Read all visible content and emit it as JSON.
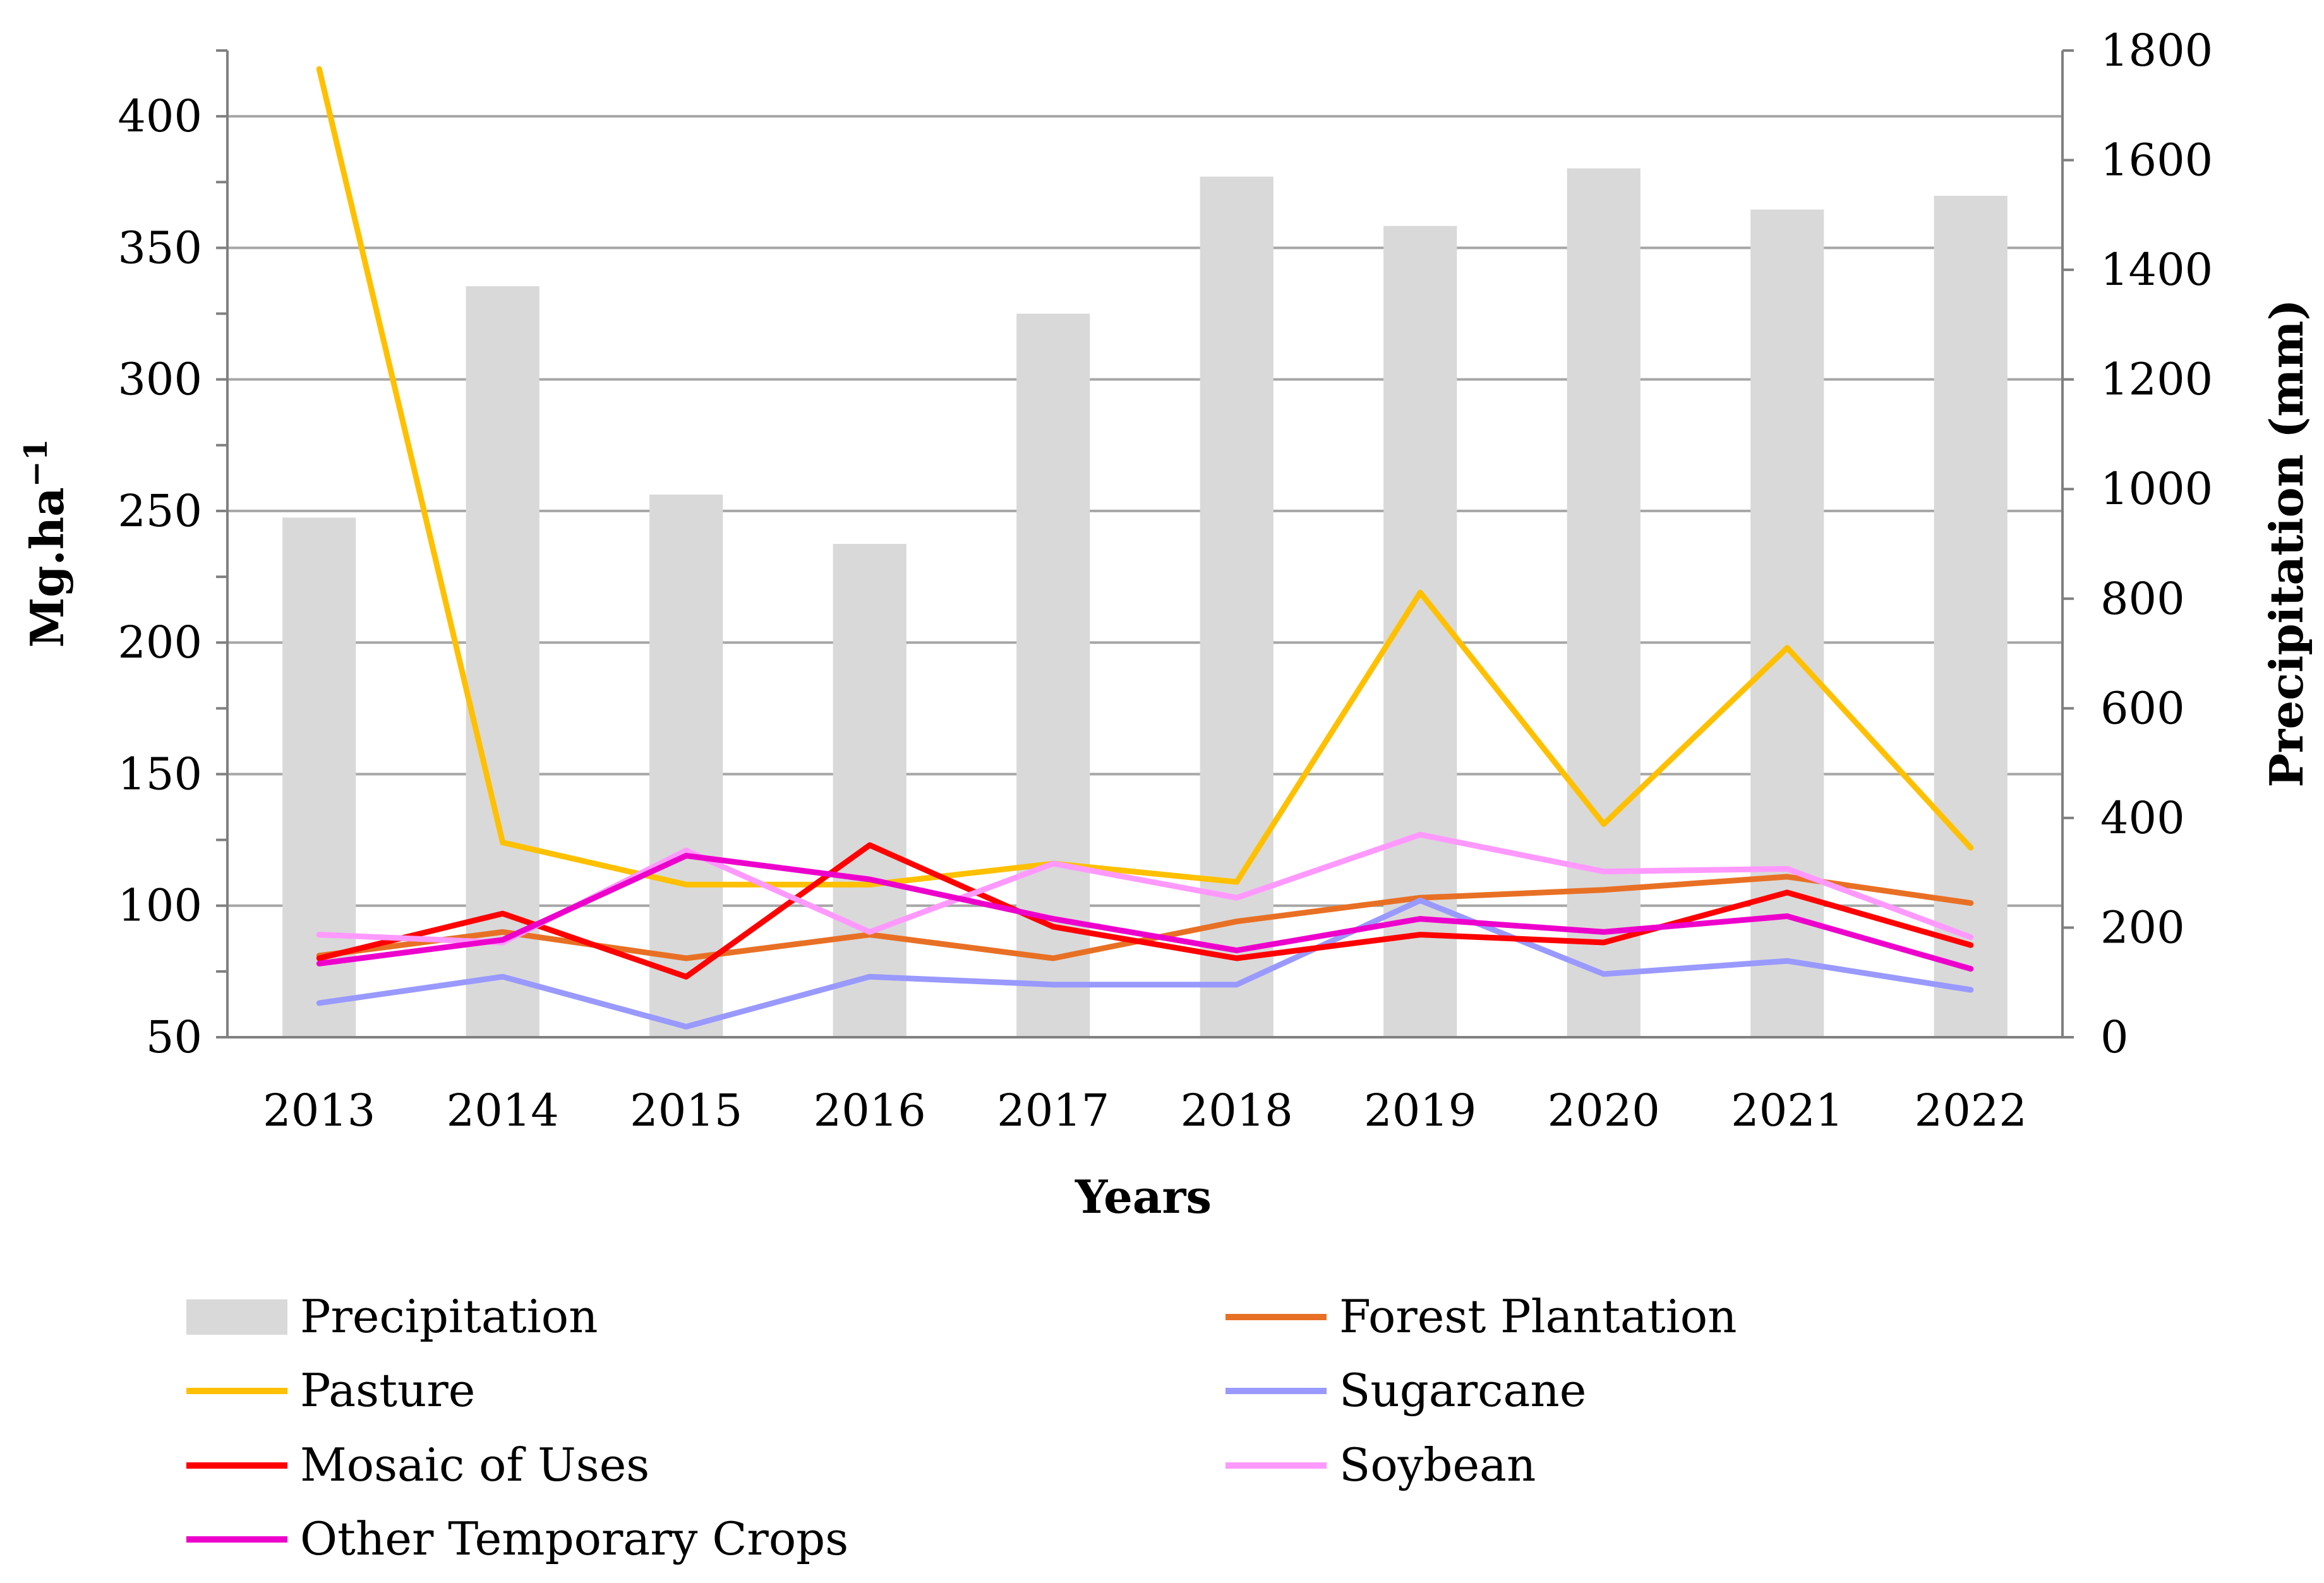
{
  "chart_data": {
    "type": "bar+line",
    "title": "",
    "xlabel": "Years",
    "ylabel": "Mg.ha",
    "ylabel_superscript": "−1",
    "y2label": "Precipitation (mm)",
    "categories": [
      "2013",
      "2014",
      "2015",
      "2016",
      "2017",
      "2018",
      "2019",
      "2020",
      "2021",
      "2022"
    ],
    "ylim": [
      50,
      425
    ],
    "y_ticks": [
      50,
      100,
      150,
      200,
      250,
      300,
      350,
      400
    ],
    "y2lim": [
      0,
      1800
    ],
    "y2_ticks": [
      0,
      200,
      400,
      600,
      800,
      1000,
      1200,
      1400,
      1600,
      1800
    ],
    "grid": true,
    "legend_position": "bottom",
    "bars": {
      "name": "Precipitation",
      "color": "#d9d9d9",
      "axis": "right",
      "values": [
        948,
        1370,
        990,
        900,
        1320,
        1570,
        1480,
        1585,
        1510,
        1535
      ]
    },
    "series": [
      {
        "name": "Forest Plantation",
        "color": "#e87025",
        "axis": "left",
        "values": [
          81,
          90,
          80,
          89,
          80,
          94,
          103,
          106,
          111,
          101
        ]
      },
      {
        "name": "Pasture",
        "color": "#ffc000",
        "axis": "left",
        "values": [
          418,
          124,
          108,
          108,
          116,
          109,
          219,
          131,
          198,
          122
        ]
      },
      {
        "name": "Sugarcane",
        "color": "#9999ff",
        "axis": "left",
        "values": [
          63,
          73,
          54,
          73,
          70,
          70,
          102,
          74,
          79,
          68
        ]
      },
      {
        "name": "Mosaic of Uses",
        "color": "#ff0000",
        "axis": "left",
        "values": [
          80,
          97,
          73,
          123,
          92,
          80,
          89,
          86,
          105,
          85
        ]
      },
      {
        "name": "Soybean",
        "color": "#ff99ff",
        "axis": "left",
        "values": [
          89,
          86,
          121,
          90,
          116,
          103,
          127,
          113,
          114,
          88
        ]
      },
      {
        "name": "Other Temporary Crops",
        "color": "#ee00cc",
        "axis": "left",
        "values": [
          78,
          87,
          119,
          110,
          95,
          83,
          95,
          90,
          96,
          76
        ]
      }
    ],
    "legend_order": [
      "Precipitation",
      "Forest Plantation",
      "Pasture",
      "Sugarcane",
      "Mosaic of Uses",
      "Soybean",
      "Other Temporary Crops"
    ]
  }
}
